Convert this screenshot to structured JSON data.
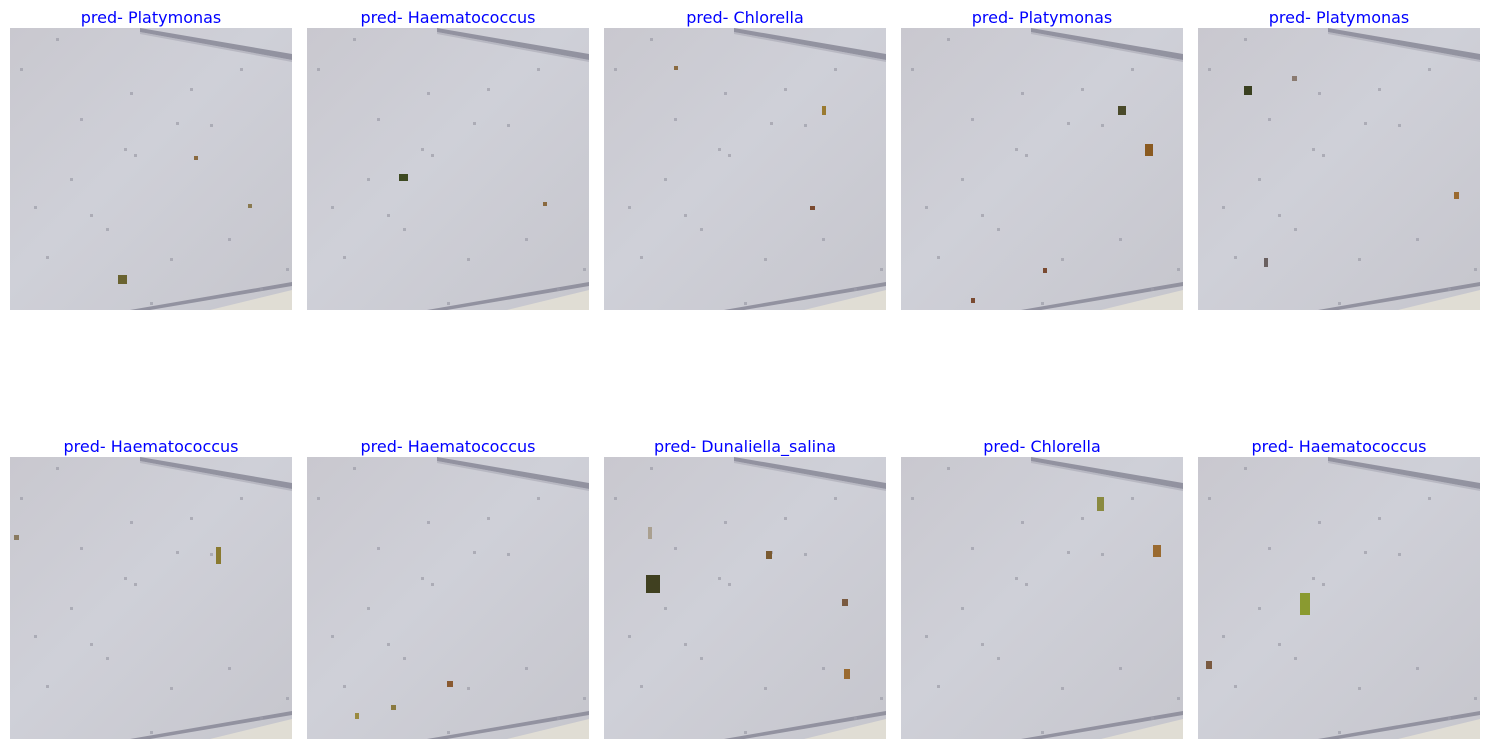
{
  "title_color": "#0000ff",
  "panels": [
    {
      "label": "pred- Platymonas",
      "specks": [
        [
          108,
          247,
          9,
          9,
          "#6a6330"
        ],
        [
          184,
          128,
          4,
          4,
          "#8a6a40"
        ],
        [
          238,
          176,
          4,
          4,
          "#8a7a50"
        ]
      ]
    },
    {
      "label": "pred- Haematococcus",
      "specks": [
        [
          92,
          146,
          9,
          7,
          "#3e4a22"
        ],
        [
          236,
          174,
          4,
          4,
          "#8a6a40"
        ]
      ]
    },
    {
      "label": "pred- Chlorella",
      "specks": [
        [
          218,
          78,
          4,
          9,
          "#9a7a30"
        ],
        [
          206,
          178,
          5,
          4,
          "#7a4a30"
        ],
        [
          70,
          38,
          4,
          4,
          "#8a6a40"
        ]
      ]
    },
    {
      "label": "pred- Platymonas",
      "specks": [
        [
          217,
          78,
          8,
          9,
          "#4a4a2a"
        ],
        [
          244,
          116,
          8,
          12,
          "#8a5a20"
        ],
        [
          142,
          240,
          4,
          5,
          "#7a4a30"
        ],
        [
          70,
          270,
          4,
          5,
          "#7a4a30"
        ]
      ]
    },
    {
      "label": "pred- Platymonas",
      "specks": [
        [
          46,
          58,
          8,
          9,
          "#3a4020"
        ],
        [
          94,
          48,
          5,
          5,
          "#8a7a70"
        ],
        [
          256,
          164,
          5,
          7,
          "#9a6a30"
        ],
        [
          66,
          230,
          4,
          9,
          "#6a6060"
        ]
      ]
    },
    {
      "label": "pred- Haematococcus",
      "specks": [
        [
          206,
          90,
          5,
          17,
          "#8a7a30"
        ],
        [
          4,
          78,
          5,
          5,
          "#8a7a60"
        ]
      ]
    },
    {
      "label": "pred- Haematococcus",
      "specks": [
        [
          140,
          224,
          6,
          6,
          "#8a5a30"
        ],
        [
          84,
          248,
          5,
          5,
          "#8a7a40"
        ],
        [
          48,
          256,
          4,
          6,
          "#9a8a40"
        ]
      ]
    },
    {
      "label": "pred- Dunaliella_salina",
      "specks": [
        [
          42,
          118,
          14,
          18,
          "#404020"
        ],
        [
          162,
          94,
          6,
          8,
          "#7a5a30"
        ],
        [
          238,
          142,
          6,
          7,
          "#7a5a40"
        ],
        [
          240,
          212,
          6,
          10,
          "#9a6a30"
        ],
        [
          44,
          70,
          4,
          12,
          "#aaa090"
        ]
      ]
    },
    {
      "label": "pred- Chlorella",
      "specks": [
        [
          196,
          40,
          7,
          14,
          "#8a8a40"
        ],
        [
          252,
          88,
          8,
          12,
          "#9a6a30"
        ]
      ]
    },
    {
      "label": "pred- Haematococcus",
      "specks": [
        [
          102,
          136,
          10,
          22,
          "#8a9a30"
        ],
        [
          8,
          204,
          6,
          8,
          "#7a5a40"
        ]
      ]
    }
  ]
}
